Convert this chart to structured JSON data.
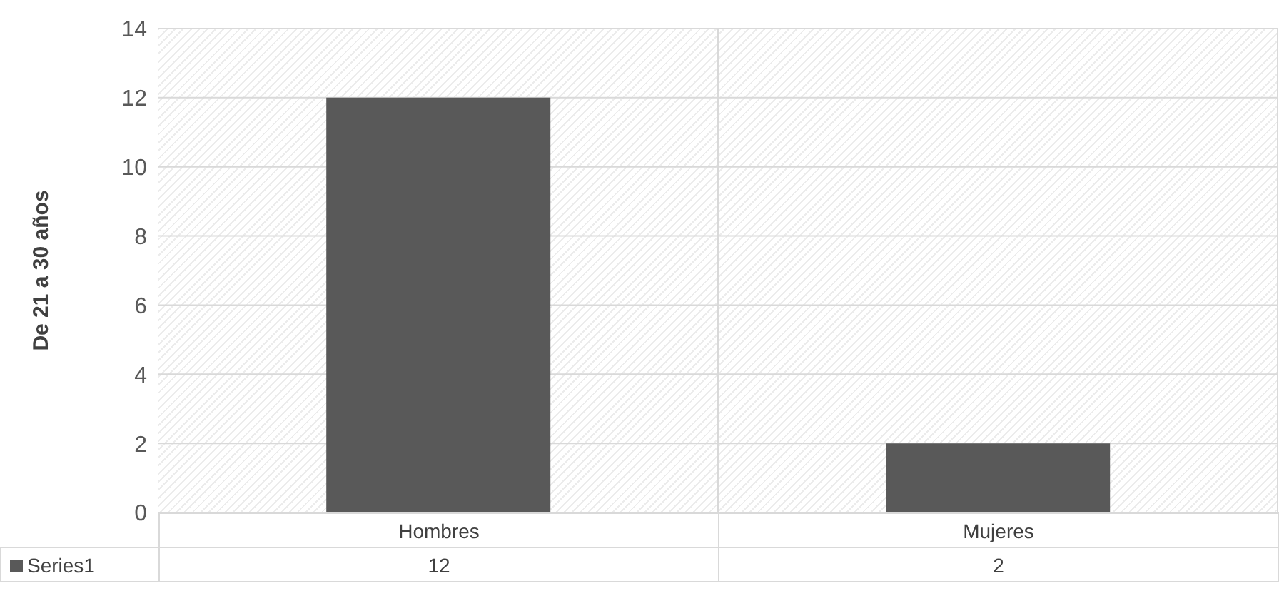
{
  "chart_data": {
    "type": "bar",
    "ylabel": "De 21 a 30 años",
    "categories": [
      "Hombres",
      "Mujeres"
    ],
    "series": [
      {
        "name": "Series1",
        "color": "#595959",
        "values": [
          12,
          2
        ]
      }
    ],
    "ylim": [
      0,
      14
    ],
    "yticks": [
      0,
      2,
      4,
      6,
      8,
      10,
      12,
      14
    ],
    "grid": true,
    "legend": "bottom left",
    "data_labels": true
  }
}
